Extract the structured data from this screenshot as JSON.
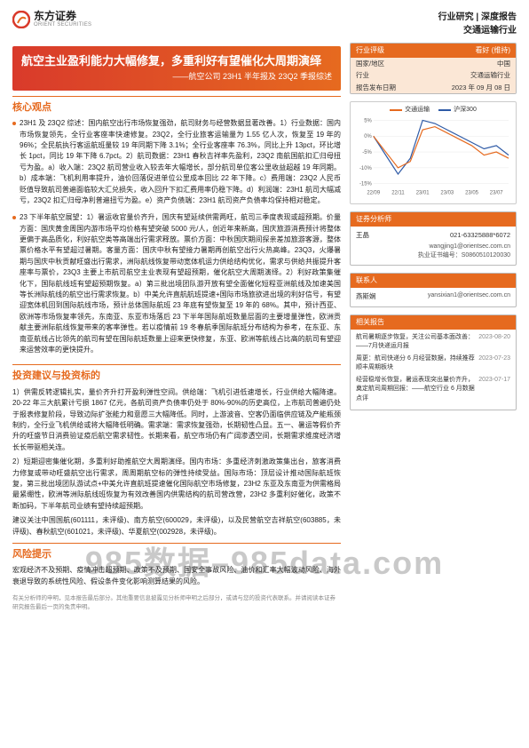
{
  "header": {
    "logo_cn": "东方证券",
    "logo_en": "ORIENT SECURITIES",
    "right1": "行业研究 | 深度报告",
    "right2": "交通运输行业",
    "logo_colors": {
      "outer": "#d93a2b",
      "inner": "#e66a1f"
    }
  },
  "banner": {
    "title": "航空主业盈利能力大幅修复，多重利好有望催化大周期演绎",
    "subtitle": "——航空公司 23H1 半年报及 23Q2 季报综述",
    "gradient_from": "#d93a2b",
    "gradient_to": "#e66a1f"
  },
  "rating_box": {
    "header_left": "行业评级",
    "header_right": "看好 (维持)",
    "rows": [
      {
        "k": "国家/地区",
        "v": "中国"
      },
      {
        "k": "行业",
        "v": "交通运输行业"
      },
      {
        "k": "报告发布日期",
        "v": "2023 年 09 月 08 日"
      }
    ],
    "header_bg": "#e66a1f",
    "row_bg": "#fbe7d6"
  },
  "chart": {
    "legend": [
      {
        "label": "交通运输",
        "color": "#e66a1f"
      },
      {
        "label": "沪深300",
        "color": "#2e5aa6"
      }
    ],
    "y_ticks": [
      "5%",
      "0%",
      "-5%",
      "-10%",
      "-15%"
    ],
    "y_min": -15,
    "y_max": 5,
    "x_labels": [
      "22/09",
      "22/10",
      "22/11",
      "22/12",
      "23/01",
      "23/02",
      "23/03",
      "23/04",
      "23/05",
      "23/06",
      "23/07",
      "23/08"
    ],
    "series": {
      "transport": [
        0,
        -5,
        -10,
        -8,
        2,
        3,
        1,
        -1,
        -3,
        -6,
        -5,
        -7
      ],
      "csi300": [
        0,
        -6,
        -12,
        -7,
        5,
        4,
        2,
        0,
        -2,
        -4,
        -3,
        -6
      ]
    },
    "grid_color": "#e8e8e8",
    "axis_color": "#999999",
    "font_size_axis": 6
  },
  "analyst": {
    "title": "证券分析师",
    "rows": [
      {
        "name": "王晶",
        "phone": "021-63325888*6072",
        "email": "wangjing1@orientsec.com.cn",
        "license": "执业证书编号：S0860510120030"
      }
    ]
  },
  "contact": {
    "title": "联系人",
    "rows": [
      {
        "name": "燕斯娴",
        "email": "yansixian1@orientsec.com.cn"
      }
    ]
  },
  "related": {
    "title": "相关报告",
    "items": [
      {
        "t": "航司暑期逐步恢复，关注公司基本面改善：——7月快递运月报",
        "d": "2023-08-20"
      },
      {
        "t": "周更：航司快递分 6 月经营数据，持续推荐顺丰周期板块",
        "d": "2023-07-23"
      },
      {
        "t": "经营稳增长恢复，暑运表现突出量价齐升，奠定航司周期回报：——航空行业 6 月数据点评",
        "d": "2023-07-17"
      }
    ]
  },
  "core": {
    "title": "核心观点",
    "bullets": [
      "23H1 及 23Q2 综述：国内航空出行市场恢复强劲，航司财务与经营数据显著改善。1）行业数据：国内市场恢复领先，全行业客座率快速修复。23Q2，全行业旅客运输量为 1.55 亿人次，恢复至 19 年的 96%；全民航执行客运航班量较 19 年同期下降 3.1%；全行业客座率 76.3%，同比上升 13pct，环比增长 1pct，同比 19 年下降 6.7pct。2）航司数据：23H1 春秋吉祥率先盈利，23Q2 南航国航扣汇归母扭亏为盈。a）收入端：23Q2 航司营业收入较去年大幅增长，部分航司单位客公里收益超越 19 年同期。b）成本端：飞机利用率提升，油价回落促进单位公里成本回比 22 年下降。c）费用端：23Q2 人民币贬值导致航司普遍面临较大汇兑损失，收入回升下扣汇费用率仍稳下降。d）利润端：23H1 航司大幅减亏，23Q2 扣汇归母净利普遍扭亏为盈。e）资产负债端：23H1 航司资产负债率均保持相对稳定。",
      "23 下半年航空展望：1）暑运收官量价齐升，国庆有望延续供需两旺，航司三季度表现或超预期。价量方面：国庆黄金周国内游市场平均价格有望突破 5000 元/人，创近年来新高，国庆旅游消费预计将整体更偏于高品质化，利好航空类等高端出行需求释放。票价方面：中秋国庆期间探亲差加旅游客源，整体票价格水平有望超过暑期。客量方面：国庆中秋有望接力暑期再创航空出行火热高峰。23Q3，火爆暑期与国庆中秋贡献旺盛出行需求，洲际航线恢复带动宽体机运力供给结构优化，需求与供给共振提升客座率与票价，23Q3 主要上市航司航空主业表现有望超预期，催化航空大周期演绎。2）利好政策集催化下，国际航线班有望超预期恢复。a）第三批出境团队游开放有望全面催化短程亚洲航线及加速美国等长洲际航线的航空出行需求恢复。b）中美允许直航航班提速+国际市场旅欲进出境的利好信号，有望迎宽体机回到国际航线市场，预计总体国际航班 23 年底有望恢复至 19 年的 68%。其中，预计西亚、欧洲等市场恢复率领先，东南亚、东亚市场落后 23 下半年国际航班数量层面的主要增量弹性，欧洲贡献主要洲际航线恢复带来的客率弹性。若以疫情前 19 冬春航季国际航班分布结构为参考，在东亚、东南亚航线占比领先的航司有望在国际航班数量上迎来更快修复，东亚、欧洲等航线占比高的航司有望迎来运营效率的更快提升。"
    ]
  },
  "invest": {
    "title": "投资建议与投资标的",
    "paras": [
      "1）供需反转逻辑扎实，量价齐升打开盈利弹性空间。供给端：飞机引进低速增长，行业供给大幅降速。20-22 年三大航累计亏损 1867 亿元，各航司资产负债率仍处于 80%-90%的历史高位，上市航司普遍仍处于报表修复阶段，导致边际扩张能力和意愿三大幅降低。同时，上游波音、空客仍面临供应链及产能瓶颈制约，全行业飞机供给或将大幅降低明确。需求端：需求恢复强劲，长期韧性凸显。五一、暑运等假价齐升的旺盛节日消费验证疫后航空需求韧性。长期来看，航空市场仍有广阔渗透空间，长期需求维度经济增长长带驱相关连。",
      "2）短期迎密集催化期，多重利好助推航空大周期演绎。国内市场：多重经济刺激政策集出台，旅客消费力修复或带动旺盛航空出行需求，周周期航空标的弹性持续受益。国际市场：顶层设计推动国际航班恢复，第三批出境团队游试点+中美允许直航班提速催化国际航空市场修复，23H2 东亚及东南亚为供需格局最紧绷性，欧洲等洲际航线班恢复为有效改善国内供需结构的航司营改营，23H2 多重利好催化，政策不断加码，下半年航司业绩有望持续超预期。",
      "建议关注中国国航(601111，未评级)、南方航空(600029，未评级)，以及民营航空吉祥航空(603885，未评级)、春秋航空(601021，未评级)、华夏航空(002928，未评级)。"
    ]
  },
  "risk": {
    "title": "风险提示",
    "text": "宏观经济不及预期、疫情冲击超预期、政策不及预期、国安全事故风险、油价和汇率大幅波动风险、海外衰退导致的系统性风险、假设条件变化影响测算结果的风险。"
  },
  "footnote": "有关分析师的申明，见本报告最后部分。其他重要信息披露见分析师申明之后部分，或请与您的投资代表联系。并请阅读本证券研究报告最后一页的免责申明。",
  "watermark": "985数据–985data.com",
  "colors": {
    "accent": "#e66a1f",
    "text": "#222222",
    "muted": "#888888",
    "border": "#bbbbbb"
  }
}
